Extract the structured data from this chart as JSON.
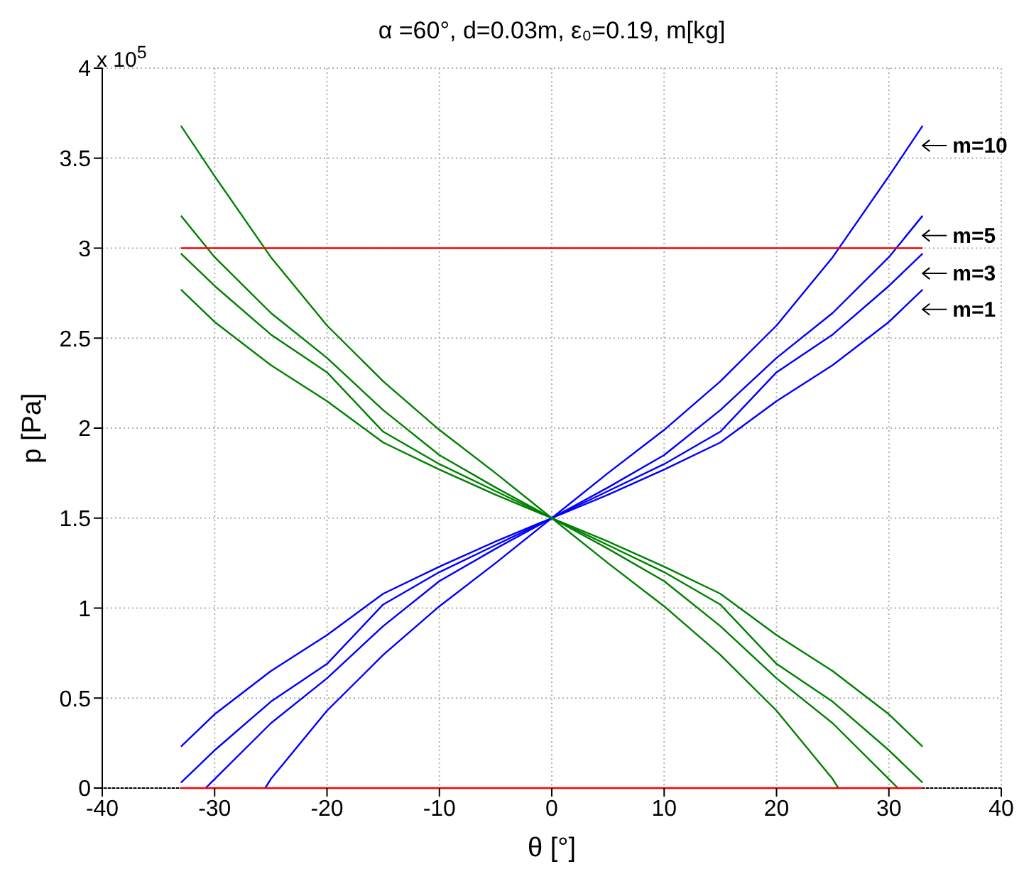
{
  "chart_data": {
    "type": "line",
    "title": "α =60°, d=0.03m, ε₀=0.19, m[kg]",
    "xlabel": "θ [°]",
    "ylabel": "p [Pa]",
    "xlim": [
      -40,
      40
    ],
    "xticks": [
      -40,
      -30,
      -20,
      -10,
      0,
      10,
      20,
      30,
      40
    ],
    "ylim": [
      0,
      4
    ],
    "yticks": [
      0,
      0.5,
      1,
      1.5,
      2,
      2.5,
      3,
      3.5,
      4
    ],
    "grid": true,
    "marker": "none",
    "line_style": "solid",
    "series": [
      {
        "name": "m=1",
        "color": "#0000ff",
        "x": [
          -33,
          -30,
          -25,
          -20,
          -15,
          -10,
          -5,
          0,
          5,
          10,
          15,
          20,
          25,
          30,
          33
        ],
        "values": [
          0.23,
          0.41,
          0.65,
          0.85,
          1.08,
          1.23,
          1.37,
          1.5,
          1.63,
          1.77,
          1.92,
          2.15,
          2.35,
          2.59,
          2.77
        ]
      },
      {
        "name": "m=3",
        "color": "#0000ff",
        "x": [
          -33,
          -30,
          -25,
          -20,
          -15,
          -10,
          -5,
          0,
          5,
          10,
          15,
          20,
          25,
          30,
          33
        ],
        "values": [
          0.03,
          0.21,
          0.48,
          0.69,
          1.02,
          1.2,
          1.35,
          1.5,
          1.65,
          1.8,
          1.98,
          2.31,
          2.52,
          2.79,
          2.97
        ]
      },
      {
        "name": "m=5",
        "color": "#0000ff",
        "x": [
          -30.8,
          -30,
          -25,
          -20,
          -15,
          -10,
          -5,
          0,
          5,
          10,
          15,
          20,
          25,
          30,
          33
        ],
        "values": [
          0,
          0.05,
          0.36,
          0.61,
          0.9,
          1.15,
          1.33,
          1.5,
          1.67,
          1.85,
          2.1,
          2.39,
          2.64,
          2.95,
          3.18
        ]
      },
      {
        "name": "m=10",
        "color": "#0000ff",
        "x": [
          -25.5,
          -25,
          -20,
          -15,
          -10,
          -5,
          0,
          5,
          10,
          15,
          20,
          25,
          30,
          33
        ],
        "values": [
          0,
          0.05,
          0.43,
          0.74,
          1.01,
          1.25,
          1.5,
          1.75,
          1.99,
          2.26,
          2.57,
          2.95,
          3.4,
          3.68
        ]
      },
      {
        "color": "#008000",
        "x": [
          -33,
          -30,
          -25,
          -20,
          -15,
          -10,
          -5,
          0,
          5,
          10,
          15,
          20,
          25,
          30,
          33
        ],
        "values": [
          2.77,
          2.59,
          2.35,
          2.15,
          1.92,
          1.77,
          1.63,
          1.5,
          1.37,
          1.23,
          1.08,
          0.85,
          0.65,
          0.41,
          0.23
        ]
      },
      {
        "color": "#008000",
        "x": [
          -33,
          -30,
          -25,
          -20,
          -15,
          -10,
          -5,
          0,
          5,
          10,
          15,
          20,
          25,
          30,
          33
        ],
        "values": [
          2.97,
          2.79,
          2.52,
          2.31,
          1.98,
          1.8,
          1.65,
          1.5,
          1.35,
          1.2,
          1.02,
          0.69,
          0.48,
          0.21,
          0.03
        ]
      },
      {
        "color": "#008000",
        "x": [
          -33,
          -30,
          -25,
          -20,
          -15,
          -10,
          -5,
          0,
          5,
          10,
          15,
          20,
          25,
          30,
          30.8
        ],
        "values": [
          3.18,
          2.95,
          2.64,
          2.39,
          2.1,
          1.85,
          1.67,
          1.5,
          1.33,
          1.15,
          0.9,
          0.61,
          0.36,
          0.05,
          0
        ]
      },
      {
        "color": "#008000",
        "x": [
          -33,
          -30,
          -25,
          -20,
          -15,
          -10,
          -5,
          0,
          5,
          10,
          15,
          20,
          25,
          25.5
        ],
        "values": [
          3.68,
          3.4,
          2.95,
          2.57,
          2.26,
          1.99,
          1.75,
          1.5,
          1.25,
          1.01,
          0.74,
          0.43,
          0.05,
          0
        ]
      },
      {
        "color": "#ff0000",
        "x": [
          -33,
          33
        ],
        "values": [
          3,
          3
        ]
      },
      {
        "color": "#ff0000",
        "x": [
          -33,
          33
        ],
        "values": [
          0,
          0
        ]
      }
    ],
    "annotations": [
      "x 10$^{5}$"
    ]
  }
}
